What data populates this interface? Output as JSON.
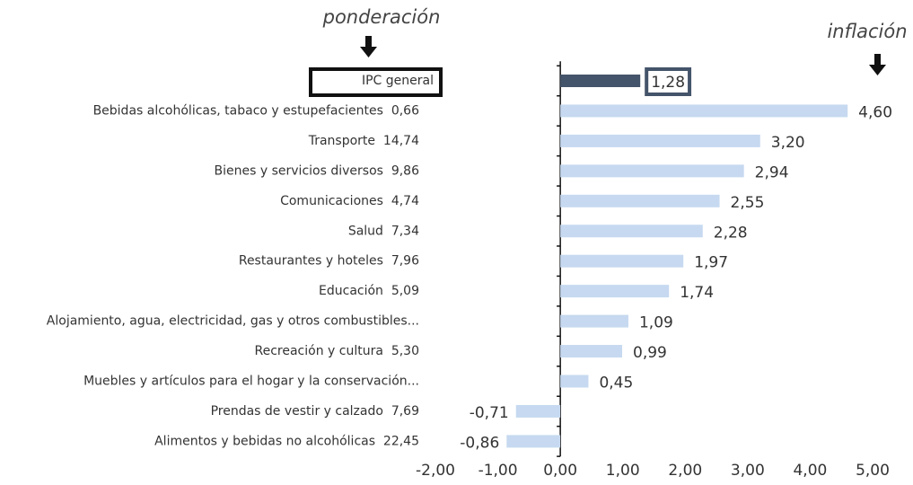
{
  "chart_data": {
    "type": "bar",
    "orientation": "horizontal",
    "annotations": {
      "left": "ponderación",
      "right": "inflación"
    },
    "categories": [
      "IPC general",
      "Bebidas alcohólicas, tabaco y estupefacientes  0,66",
      "Transporte  14,74",
      "Bienes y servicios diversos  9,86",
      "Comunicaciones  4,74",
      "Salud  7,34",
      "Restaurantes y hoteles  7,96",
      "Educación  5,09",
      "Alojamiento, agua, electricidad, gas y otros combustibles...",
      "Recreación y cultura  5,30",
      "Muebles y artículos para el hogar y la conservación...",
      "Prendas de vestir y calzado  7,69",
      "Alimentos y bebidas no alcohólicas  22,45"
    ],
    "values": [
      1.28,
      4.6,
      3.2,
      2.94,
      2.55,
      2.28,
      1.97,
      1.74,
      1.09,
      0.99,
      0.45,
      -0.71,
      -0.86
    ],
    "value_labels": [
      "1,28",
      "4,60",
      "3,20",
      "2,94",
      "2,55",
      "2,28",
      "1,97",
      "1,74",
      "1,09",
      "0,99",
      "0,45",
      "-0,71",
      "-0,86"
    ],
    "colors": [
      "#44546a",
      "#c6d9f0",
      "#c6d9f0",
      "#c6d9f0",
      "#c6d9f0",
      "#c6d9f0",
      "#c6d9f0",
      "#c6d9f0",
      "#c6d9f0",
      "#c6d9f0",
      "#c6d9f0",
      "#c6d9f0",
      "#c6d9f0"
    ],
    "xlim": [
      -2,
      5
    ],
    "xticks": [
      {
        "value": -2,
        "label": "-2,00"
      },
      {
        "value": -1,
        "label": "-1,00"
      },
      {
        "value": 0,
        "label": "0,00"
      },
      {
        "value": 1,
        "label": "1,00"
      },
      {
        "value": 2,
        "label": "2,00"
      },
      {
        "value": 3,
        "label": "3,00"
      },
      {
        "value": 4,
        "label": "4,00"
      },
      {
        "value": 5,
        "label": "5,00"
      }
    ]
  }
}
